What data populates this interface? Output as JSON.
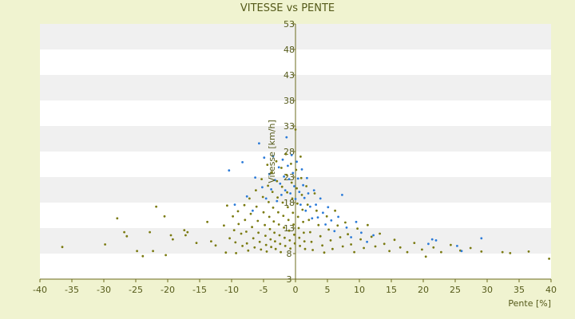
{
  "chart_data": {
    "type": "scatter",
    "title": "VITESSE vs PENTE",
    "xlabel": "Pente [%]",
    "ylabel": "Vitesse [km/h]",
    "xlim": [
      -40,
      40
    ],
    "ylim": [
      3,
      53
    ],
    "xticks": [
      -40,
      -35,
      -30,
      -25,
      -20,
      -15,
      -10,
      -5,
      0,
      5,
      10,
      15,
      20,
      25,
      30,
      35,
      40
    ],
    "yticks": [
      3,
      8,
      13,
      18,
      23,
      28,
      33,
      38,
      43,
      48,
      53
    ],
    "grid": "horizontal-bands",
    "legend": "none",
    "colors": {
      "background": "#f0f3d0",
      "band_light": "#ffffff",
      "band_dark": "#f0f0f0",
      "axis": "#6b6b1e",
      "series_olive": "#7a7a10",
      "series_blue": "#2a7ad8"
    },
    "series": [
      {
        "color": "#7a7a10",
        "points": [
          [
            -36.5,
            9.3
          ],
          [
            -29.8,
            9.8
          ],
          [
            -27.9,
            14.9
          ],
          [
            -26.8,
            12.2
          ],
          [
            -26.4,
            11.4
          ],
          [
            -24.8,
            8.5
          ],
          [
            -23.9,
            7.5
          ],
          [
            -22.8,
            12.2
          ],
          [
            -22.3,
            8.5
          ],
          [
            -21.8,
            17.2
          ],
          [
            -20.5,
            15.3
          ],
          [
            -20.3,
            7.7
          ],
          [
            -19.5,
            11.6
          ],
          [
            -19.2,
            10.8
          ],
          [
            -17.4,
            12.6
          ],
          [
            -17.2,
            11.6
          ],
          [
            -16.9,
            12.2
          ],
          [
            -15.5,
            10.1
          ],
          [
            -13.8,
            14.2
          ],
          [
            -13.2,
            10.4
          ],
          [
            -12.5,
            9.6
          ],
          [
            -11.2,
            13.5
          ],
          [
            -10.9,
            8.2
          ],
          [
            -10.7,
            17.4
          ],
          [
            -10.3,
            11.0
          ],
          [
            -9.8,
            15.3
          ],
          [
            -9.6,
            12.6
          ],
          [
            -9.4,
            10.2
          ],
          [
            -9.3,
            8.1
          ],
          [
            -9.0,
            16.3
          ],
          [
            -8.9,
            13.8
          ],
          [
            -8.5,
            11.9
          ],
          [
            -8.3,
            9.5
          ],
          [
            -8.0,
            17.5
          ],
          [
            -7.9,
            14.6
          ],
          [
            -7.7,
            12.3
          ],
          [
            -7.6,
            10.0
          ],
          [
            -7.4,
            8.6
          ],
          [
            -7.2,
            18.8
          ],
          [
            -7.0,
            15.8
          ],
          [
            -6.8,
            13.2
          ],
          [
            -6.6,
            11.0
          ],
          [
            -6.4,
            9.2
          ],
          [
            -6.2,
            20.4
          ],
          [
            -6.1,
            17.2
          ],
          [
            -5.9,
            14.4
          ],
          [
            -5.8,
            12.1
          ],
          [
            -5.6,
            10.3
          ],
          [
            -5.4,
            8.8
          ],
          [
            -5.3,
            22.6
          ],
          [
            -5.1,
            19.1
          ],
          [
            -5.0,
            16.1
          ],
          [
            -4.8,
            13.6
          ],
          [
            -4.7,
            11.5
          ],
          [
            -4.6,
            9.7
          ],
          [
            -4.5,
            8.4
          ],
          [
            -4.4,
            25.4
          ],
          [
            -4.3,
            21.3
          ],
          [
            -4.2,
            18.1
          ],
          [
            -4.1,
            15.2
          ],
          [
            -4.0,
            12.8
          ],
          [
            -3.9,
            10.8
          ],
          [
            -3.8,
            9.3
          ],
          [
            -3.7,
            23.9
          ],
          [
            -3.6,
            20.1
          ],
          [
            -3.5,
            17.0
          ],
          [
            -3.4,
            14.3
          ],
          [
            -3.3,
            12.1
          ],
          [
            -3.2,
            10.4
          ],
          [
            -3.1,
            8.9
          ],
          [
            -3.0,
            26.1
          ],
          [
            -2.9,
            22.2
          ],
          [
            -2.8,
            19.0
          ],
          [
            -2.7,
            16.1
          ],
          [
            -2.6,
            13.7
          ],
          [
            -2.5,
            11.6
          ],
          [
            -2.4,
            9.9
          ],
          [
            -2.3,
            8.3
          ],
          [
            -2.2,
            24.8
          ],
          [
            -2.1,
            21.1
          ],
          [
            -2.0,
            18.0
          ],
          [
            -1.9,
            15.4
          ],
          [
            -1.8,
            13.1
          ],
          [
            -1.7,
            11.1
          ],
          [
            -1.6,
            9.5
          ],
          [
            -1.5,
            27.5
          ],
          [
            -1.4,
            23.4
          ],
          [
            -1.3,
            20.0
          ],
          [
            -1.2,
            17.1
          ],
          [
            -1.1,
            14.6
          ],
          [
            -1.0,
            12.5
          ],
          [
            -0.9,
            10.6
          ],
          [
            -0.8,
            9.0
          ],
          [
            -0.7,
            25.6
          ],
          [
            -0.6,
            21.9
          ],
          [
            -0.5,
            18.8
          ],
          [
            -0.4,
            16.0
          ],
          [
            -0.3,
            13.7
          ],
          [
            -0.2,
            11.7
          ],
          [
            -0.1,
            10.0
          ],
          [
            0.0,
            32.3
          ],
          [
            0.1,
            24.4
          ],
          [
            0.2,
            20.8
          ],
          [
            0.3,
            17.8
          ],
          [
            0.4,
            15.2
          ],
          [
            0.5,
            13.0
          ],
          [
            0.6,
            11.1
          ],
          [
            0.7,
            9.5
          ],
          [
            0.8,
            27.0
          ],
          [
            0.9,
            22.8
          ],
          [
            1.0,
            19.5
          ],
          [
            1.1,
            16.6
          ],
          [
            1.2,
            14.2
          ],
          [
            1.3,
            12.1
          ],
          [
            1.4,
            10.4
          ],
          [
            1.5,
            8.9
          ],
          [
            1.7,
            21.2
          ],
          [
            1.9,
            17.6
          ],
          [
            2.1,
            14.6
          ],
          [
            2.3,
            12.2
          ],
          [
            2.5,
            10.3
          ],
          [
            2.7,
            8.7
          ],
          [
            3.0,
            19.8
          ],
          [
            3.3,
            16.4
          ],
          [
            3.6,
            13.6
          ],
          [
            3.9,
            11.4
          ],
          [
            4.2,
            9.6
          ],
          [
            4.5,
            8.2
          ],
          [
            4.9,
            15.3
          ],
          [
            5.2,
            12.7
          ],
          [
            5.5,
            10.6
          ],
          [
            5.8,
            8.9
          ],
          [
            6.2,
            16.4
          ],
          [
            6.6,
            13.5
          ],
          [
            7.0,
            11.2
          ],
          [
            7.4,
            9.4
          ],
          [
            7.8,
            14.1
          ],
          [
            8.2,
            11.8
          ],
          [
            8.7,
            9.8
          ],
          [
            9.2,
            8.3
          ],
          [
            9.7,
            12.9
          ],
          [
            10.2,
            10.8
          ],
          [
            10.7,
            9.1
          ],
          [
            11.3,
            13.6
          ],
          [
            11.9,
            11.3
          ],
          [
            12.5,
            9.4
          ],
          [
            13.2,
            11.9
          ],
          [
            13.9,
            9.9
          ],
          [
            14.7,
            8.5
          ],
          [
            15.5,
            10.7
          ],
          [
            16.4,
            9.2
          ],
          [
            17.5,
            8.3
          ],
          [
            18.6,
            10.1
          ],
          [
            19.8,
            8.8
          ],
          [
            20.4,
            7.4
          ],
          [
            21.6,
            9.2
          ],
          [
            22.8,
            8.3
          ],
          [
            24.3,
            9.7
          ],
          [
            25.8,
            8.6
          ],
          [
            27.4,
            9.1
          ],
          [
            29.1,
            8.4
          ],
          [
            32.4,
            8.3
          ],
          [
            33.6,
            8.1
          ],
          [
            36.5,
            8.4
          ],
          [
            39.7,
            7.0
          ]
        ]
      },
      {
        "color": "#2a7ad8",
        "points": [
          [
            -10.4,
            24.3
          ],
          [
            -9.5,
            17.6
          ],
          [
            -8.3,
            25.9
          ],
          [
            -7.6,
            19.2
          ],
          [
            -6.7,
            16.4
          ],
          [
            -6.3,
            22.9
          ],
          [
            -5.7,
            29.6
          ],
          [
            -5.2,
            21.0
          ],
          [
            -4.9,
            26.8
          ],
          [
            -4.6,
            18.8
          ],
          [
            -4.1,
            23.6
          ],
          [
            -3.8,
            20.6
          ],
          [
            -3.5,
            27.1
          ],
          [
            -3.2,
            22.4
          ],
          [
            -2.9,
            18.3
          ],
          [
            -2.6,
            24.9
          ],
          [
            -2.4,
            21.7
          ],
          [
            -2.2,
            19.5
          ],
          [
            -2.0,
            26.4
          ],
          [
            -1.8,
            23.1
          ],
          [
            -1.6,
            20.4
          ],
          [
            -1.4,
            30.8
          ],
          [
            -1.2,
            25.2
          ],
          [
            -1.0,
            22.6
          ],
          [
            -0.8,
            19.8
          ],
          [
            -0.6,
            27.3
          ],
          [
            -0.4,
            23.8
          ],
          [
            -0.2,
            21.2
          ],
          [
            0.0,
            18.7
          ],
          [
            0.2,
            26.0
          ],
          [
            0.4,
            22.7
          ],
          [
            0.6,
            20.1
          ],
          [
            0.8,
            17.6
          ],
          [
            1.0,
            24.5
          ],
          [
            1.2,
            21.4
          ],
          [
            1.4,
            18.9
          ],
          [
            1.6,
            16.4
          ],
          [
            1.8,
            22.8
          ],
          [
            2.0,
            19.8
          ],
          [
            2.3,
            17.2
          ],
          [
            2.6,
            14.9
          ],
          [
            2.9,
            20.4
          ],
          [
            3.2,
            17.6
          ],
          [
            3.5,
            15.1
          ],
          [
            3.9,
            18.8
          ],
          [
            4.3,
            16.0
          ],
          [
            4.7,
            13.7
          ],
          [
            5.1,
            17.1
          ],
          [
            5.6,
            14.5
          ],
          [
            6.1,
            12.4
          ],
          [
            6.7,
            15.2
          ],
          [
            7.3,
            19.5
          ],
          [
            8.0,
            13.1
          ],
          [
            8.7,
            11.2
          ],
          [
            9.5,
            14.2
          ],
          [
            10.3,
            12.1
          ],
          [
            11.2,
            10.3
          ],
          [
            12.2,
            11.6
          ],
          [
            20.8,
            9.9
          ],
          [
            21.4,
            10.8
          ],
          [
            22.0,
            10.6
          ],
          [
            25.3,
            9.5
          ],
          [
            26.0,
            8.5
          ],
          [
            29.1,
            11.0
          ]
        ]
      }
    ]
  }
}
